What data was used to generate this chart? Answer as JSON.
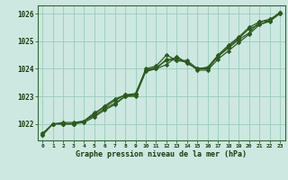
{
  "title": "Graphe pression niveau de la mer (hPa)",
  "bg_color": "#cce8e0",
  "grid_color": "#99ccbb",
  "line_color": "#2d5a1e",
  "text_color": "#1a3a10",
  "spine_color": "#336633",
  "xlim": [
    -0.5,
    23.5
  ],
  "ylim": [
    1021.4,
    1026.3
  ],
  "yticks": [
    1022,
    1023,
    1024,
    1025,
    1026
  ],
  "xticks": [
    0,
    1,
    2,
    3,
    4,
    5,
    6,
    7,
    8,
    9,
    10,
    11,
    12,
    13,
    14,
    15,
    16,
    17,
    18,
    19,
    20,
    21,
    22,
    23
  ],
  "series": [
    [
      1021.65,
      1022.0,
      1022.0,
      1022.0,
      1022.1,
      1022.3,
      1022.55,
      1022.75,
      1023.0,
      1023.05,
      1023.95,
      1024.0,
      1024.15,
      1024.45,
      1024.2,
      1024.0,
      1024.05,
      1024.5,
      1024.85,
      1025.15,
      1025.5,
      1025.7,
      1025.75,
      1026.05
    ],
    [
      1021.65,
      1022.0,
      1022.0,
      1022.0,
      1022.1,
      1022.35,
      1022.65,
      1022.9,
      1023.05,
      1023.1,
      1023.95,
      1024.05,
      1024.3,
      1024.4,
      1024.2,
      1024.0,
      1024.05,
      1024.45,
      1024.8,
      1025.1,
      1025.45,
      1025.6,
      1025.75,
      1026.05
    ],
    [
      1021.6,
      1022.0,
      1022.05,
      1022.05,
      1022.1,
      1022.4,
      1022.6,
      1022.85,
      1023.05,
      1023.05,
      1024.0,
      1024.1,
      1024.5,
      1024.3,
      1024.3,
      1024.0,
      1024.0,
      1024.45,
      1024.75,
      1025.05,
      1025.3,
      1025.7,
      1025.8,
      1026.0
    ],
    [
      1021.6,
      1022.0,
      1022.0,
      1022.0,
      1022.05,
      1022.25,
      1022.5,
      1022.7,
      1023.0,
      1023.0,
      1023.9,
      1024.0,
      1024.35,
      1024.3,
      1024.25,
      1023.95,
      1023.95,
      1024.35,
      1024.65,
      1024.95,
      1025.25,
      1025.6,
      1025.72,
      1026.0
    ]
  ]
}
